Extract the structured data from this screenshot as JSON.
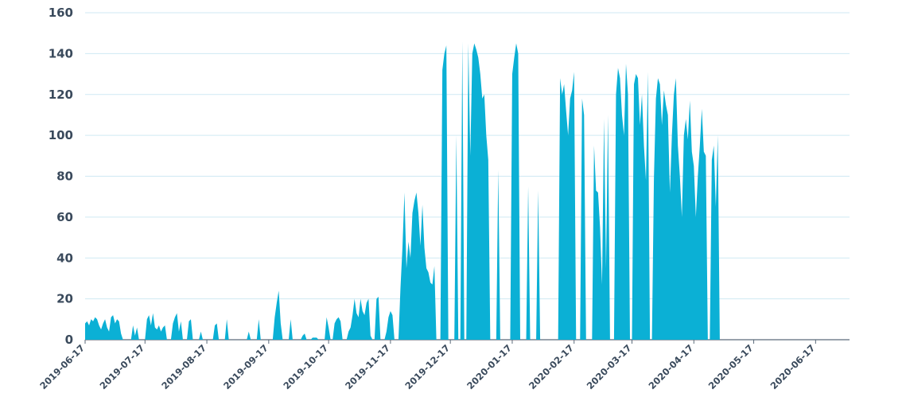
{
  "chart_data": {
    "type": "area",
    "title": "",
    "xlabel": "",
    "ylabel": "",
    "ylim": [
      0,
      160
    ],
    "yticks": [
      0,
      20,
      40,
      60,
      80,
      100,
      120,
      140,
      160
    ],
    "xlim": [
      "2019-06-17",
      "2020-07-04"
    ],
    "xtick_labels": [
      "2019-06-17",
      "2019-07-17",
      "2019-08-17",
      "2019-09-17",
      "2019-10-17",
      "2019-11-17",
      "2019-12-17",
      "2020-01-17",
      "2020-02-17",
      "2020-03-17",
      "2020-04-17",
      "2020-05-17",
      "2020-06-17"
    ],
    "grid": true,
    "color": "#0bb0d5",
    "series": [
      {
        "points": [
          [
            "2019-06-17",
            8
          ],
          [
            "2019-06-18",
            9
          ],
          [
            "2019-06-19",
            7
          ],
          [
            "2019-06-20",
            10
          ],
          [
            "2019-06-21",
            9
          ],
          [
            "2019-06-22",
            11
          ],
          [
            "2019-06-23",
            10
          ],
          [
            "2019-06-24",
            7
          ],
          [
            "2019-06-25",
            5
          ],
          [
            "2019-06-26",
            8
          ],
          [
            "2019-06-27",
            10
          ],
          [
            "2019-06-28",
            6
          ],
          [
            "2019-06-29",
            4
          ],
          [
            "2019-06-30",
            11
          ],
          [
            "2019-07-01",
            12
          ],
          [
            "2019-07-02",
            8
          ],
          [
            "2019-07-03",
            10
          ],
          [
            "2019-07-04",
            9
          ],
          [
            "2019-07-05",
            3
          ],
          [
            "2019-07-06",
            0
          ],
          [
            "2019-07-10",
            0
          ],
          [
            "2019-07-11",
            7
          ],
          [
            "2019-07-12",
            2
          ],
          [
            "2019-07-13",
            6
          ],
          [
            "2019-07-14",
            0
          ],
          [
            "2019-07-17",
            0
          ],
          [
            "2019-07-18",
            10
          ],
          [
            "2019-07-19",
            12
          ],
          [
            "2019-07-20",
            7
          ],
          [
            "2019-07-21",
            13
          ],
          [
            "2019-07-22",
            6
          ],
          [
            "2019-07-23",
            5
          ],
          [
            "2019-07-24",
            7
          ],
          [
            "2019-07-25",
            4
          ],
          [
            "2019-07-26",
            6
          ],
          [
            "2019-07-27",
            7
          ],
          [
            "2019-07-28",
            0
          ],
          [
            "2019-07-30",
            0
          ],
          [
            "2019-07-31",
            8
          ],
          [
            "2019-08-01",
            11
          ],
          [
            "2019-08-02",
            13
          ],
          [
            "2019-08-03",
            4
          ],
          [
            "2019-08-04",
            9
          ],
          [
            "2019-08-05",
            0
          ],
          [
            "2019-08-07",
            0
          ],
          [
            "2019-08-08",
            9
          ],
          [
            "2019-08-09",
            10
          ],
          [
            "2019-08-10",
            0
          ],
          [
            "2019-08-13",
            0
          ],
          [
            "2019-08-14",
            4
          ],
          [
            "2019-08-15",
            0
          ],
          [
            "2019-08-20",
            0
          ],
          [
            "2019-08-21",
            7
          ],
          [
            "2019-08-22",
            8
          ],
          [
            "2019-08-23",
            0
          ],
          [
            "2019-08-26",
            0
          ],
          [
            "2019-08-27",
            10
          ],
          [
            "2019-08-28",
            0
          ],
          [
            "2019-09-06",
            0
          ],
          [
            "2019-09-07",
            4
          ],
          [
            "2019-09-08",
            0
          ],
          [
            "2019-09-11",
            0
          ],
          [
            "2019-09-12",
            10
          ],
          [
            "2019-09-13",
            0
          ],
          [
            "2019-09-19",
            0
          ],
          [
            "2019-09-20",
            11
          ],
          [
            "2019-09-21",
            18
          ],
          [
            "2019-09-22",
            24
          ],
          [
            "2019-09-23",
            8
          ],
          [
            "2019-09-24",
            0
          ],
          [
            "2019-09-27",
            0
          ],
          [
            "2019-09-28",
            10
          ],
          [
            "2019-09-29",
            0
          ],
          [
            "2019-10-03",
            0
          ],
          [
            "2019-10-04",
            2
          ],
          [
            "2019-10-05",
            3
          ],
          [
            "2019-10-06",
            0
          ],
          [
            "2019-10-08",
            0
          ],
          [
            "2019-10-09",
            1
          ],
          [
            "2019-10-10",
            1
          ],
          [
            "2019-10-11",
            1
          ],
          [
            "2019-10-12",
            0
          ],
          [
            "2019-10-15",
            0
          ],
          [
            "2019-10-16",
            11
          ],
          [
            "2019-10-17",
            6
          ],
          [
            "2019-10-18",
            0
          ],
          [
            "2019-10-19",
            0
          ],
          [
            "2019-10-20",
            8
          ],
          [
            "2019-10-21",
            10
          ],
          [
            "2019-10-22",
            11
          ],
          [
            "2019-10-23",
            9
          ],
          [
            "2019-10-24",
            0
          ],
          [
            "2019-10-26",
            0
          ],
          [
            "2019-10-27",
            4
          ],
          [
            "2019-10-28",
            6
          ],
          [
            "2019-10-29",
            12
          ],
          [
            "2019-10-30",
            20
          ],
          [
            "2019-10-31",
            13
          ],
          [
            "2019-11-01",
            11
          ],
          [
            "2019-11-02",
            20
          ],
          [
            "2019-11-03",
            14
          ],
          [
            "2019-11-04",
            12
          ],
          [
            "2019-11-05",
            18
          ],
          [
            "2019-11-06",
            20
          ],
          [
            "2019-11-07",
            2
          ],
          [
            "2019-11-08",
            0
          ],
          [
            "2019-11-09",
            0
          ],
          [
            "2019-11-10",
            20
          ],
          [
            "2019-11-11",
            21
          ],
          [
            "2019-11-12",
            0
          ],
          [
            "2019-11-14",
            0
          ],
          [
            "2019-11-15",
            4
          ],
          [
            "2019-11-16",
            11
          ],
          [
            "2019-11-17",
            14
          ],
          [
            "2019-11-18",
            12
          ],
          [
            "2019-11-19",
            0
          ],
          [
            "2019-11-21",
            0
          ],
          [
            "2019-11-22",
            25
          ],
          [
            "2019-11-23",
            45
          ],
          [
            "2019-11-24",
            72
          ],
          [
            "2019-11-25",
            35
          ],
          [
            "2019-11-26",
            48
          ],
          [
            "2019-11-27",
            40
          ],
          [
            "2019-11-28",
            62
          ],
          [
            "2019-11-29",
            68
          ],
          [
            "2019-11-30",
            72
          ],
          [
            "2019-12-01",
            62
          ],
          [
            "2019-12-02",
            46
          ],
          [
            "2019-12-03",
            66
          ],
          [
            "2019-12-04",
            45
          ],
          [
            "2019-12-05",
            35
          ],
          [
            "2019-12-06",
            33
          ],
          [
            "2019-12-07",
            28
          ],
          [
            "2019-12-08",
            27
          ],
          [
            "2019-12-09",
            36
          ],
          [
            "2019-12-10",
            0
          ],
          [
            "2019-12-12",
            0
          ],
          [
            "2019-12-13",
            132
          ],
          [
            "2019-12-14",
            140
          ],
          [
            "2019-12-15",
            144
          ],
          [
            "2019-12-16",
            0
          ],
          [
            "2019-12-19",
            0
          ],
          [
            "2019-12-20",
            100
          ],
          [
            "2019-12-21",
            0
          ],
          [
            "2019-12-22",
            0
          ],
          [
            "2019-12-23",
            146
          ],
          [
            "2019-12-24",
            0
          ],
          [
            "2019-12-25",
            0
          ],
          [
            "2019-12-26",
            145
          ],
          [
            "2019-12-27",
            90
          ],
          [
            "2019-12-28",
            140
          ],
          [
            "2019-12-29",
            145
          ],
          [
            "2019-12-30",
            142
          ],
          [
            "2019-12-31",
            138
          ],
          [
            "2020-01-01",
            130
          ],
          [
            "2020-01-02",
            118
          ],
          [
            "2020-01-03",
            120
          ],
          [
            "2020-01-04",
            100
          ],
          [
            "2020-01-05",
            88
          ],
          [
            "2020-01-06",
            0
          ],
          [
            "2020-01-09",
            0
          ],
          [
            "2020-01-10",
            83
          ],
          [
            "2020-01-11",
            0
          ],
          [
            "2020-01-16",
            0
          ],
          [
            "2020-01-17",
            130
          ],
          [
            "2020-01-18",
            138
          ],
          [
            "2020-01-19",
            145
          ],
          [
            "2020-01-20",
            140
          ],
          [
            "2020-01-21",
            0
          ],
          [
            "2020-01-24",
            0
          ],
          [
            "2020-01-25",
            75
          ],
          [
            "2020-01-26",
            0
          ],
          [
            "2020-01-29",
            0
          ],
          [
            "2020-01-30",
            73
          ],
          [
            "2020-01-31",
            0
          ],
          [
            "2020-02-09",
            0
          ],
          [
            "2020-02-10",
            128
          ],
          [
            "2020-02-11",
            120
          ],
          [
            "2020-02-12",
            125
          ],
          [
            "2020-02-13",
            112
          ],
          [
            "2020-02-14",
            100
          ],
          [
            "2020-02-15",
            118
          ],
          [
            "2020-02-16",
            122
          ],
          [
            "2020-02-17",
            131
          ],
          [
            "2020-02-18",
            0
          ],
          [
            "2020-02-20",
            0
          ],
          [
            "2020-02-21",
            118
          ],
          [
            "2020-02-22",
            110
          ],
          [
            "2020-02-23",
            0
          ],
          [
            "2020-02-26",
            0
          ],
          [
            "2020-02-27",
            95
          ],
          [
            "2020-02-28",
            73
          ],
          [
            "2020-02-29",
            72
          ],
          [
            "2020-03-01",
            55
          ],
          [
            "2020-03-02",
            27
          ],
          [
            "2020-03-03",
            108
          ],
          [
            "2020-03-04",
            35
          ],
          [
            "2020-03-05",
            110
          ],
          [
            "2020-03-06",
            0
          ],
          [
            "2020-03-08",
            0
          ],
          [
            "2020-03-09",
            120
          ],
          [
            "2020-03-10",
            133
          ],
          [
            "2020-03-11",
            128
          ],
          [
            "2020-03-12",
            110
          ],
          [
            "2020-03-13",
            100
          ],
          [
            "2020-03-14",
            135
          ],
          [
            "2020-03-15",
            120
          ],
          [
            "2020-03-16",
            0
          ],
          [
            "2020-03-17",
            0
          ],
          [
            "2020-03-18",
            125
          ],
          [
            "2020-03-19",
            130
          ],
          [
            "2020-03-20",
            128
          ],
          [
            "2020-03-21",
            105
          ],
          [
            "2020-03-22",
            120
          ],
          [
            "2020-03-23",
            95
          ],
          [
            "2020-03-24",
            78
          ],
          [
            "2020-03-25",
            131
          ],
          [
            "2020-03-26",
            0
          ],
          [
            "2020-03-27",
            0
          ],
          [
            "2020-03-28",
            79
          ],
          [
            "2020-03-29",
            118
          ],
          [
            "2020-03-30",
            128
          ],
          [
            "2020-03-31",
            125
          ],
          [
            "2020-04-01",
            105
          ],
          [
            "2020-04-02",
            122
          ],
          [
            "2020-04-03",
            115
          ],
          [
            "2020-04-04",
            110
          ],
          [
            "2020-04-05",
            72
          ],
          [
            "2020-04-06",
            100
          ],
          [
            "2020-04-07",
            120
          ],
          [
            "2020-04-08",
            128
          ],
          [
            "2020-04-09",
            95
          ],
          [
            "2020-04-10",
            80
          ],
          [
            "2020-04-11",
            60
          ],
          [
            "2020-04-12",
            100
          ],
          [
            "2020-04-13",
            108
          ],
          [
            "2020-04-14",
            98
          ],
          [
            "2020-04-15",
            117
          ],
          [
            "2020-04-16",
            92
          ],
          [
            "2020-04-17",
            85
          ],
          [
            "2020-04-18",
            60
          ],
          [
            "2020-04-19",
            80
          ],
          [
            "2020-04-20",
            95
          ],
          [
            "2020-04-21",
            113
          ],
          [
            "2020-04-22",
            92
          ],
          [
            "2020-04-23",
            90
          ],
          [
            "2020-04-24",
            0
          ],
          [
            "2020-04-25",
            0
          ],
          [
            "2020-04-26",
            88
          ],
          [
            "2020-04-27",
            95
          ],
          [
            "2020-04-28",
            65
          ],
          [
            "2020-04-29",
            100
          ],
          [
            "2020-04-30",
            0
          ]
        ]
      }
    ]
  }
}
